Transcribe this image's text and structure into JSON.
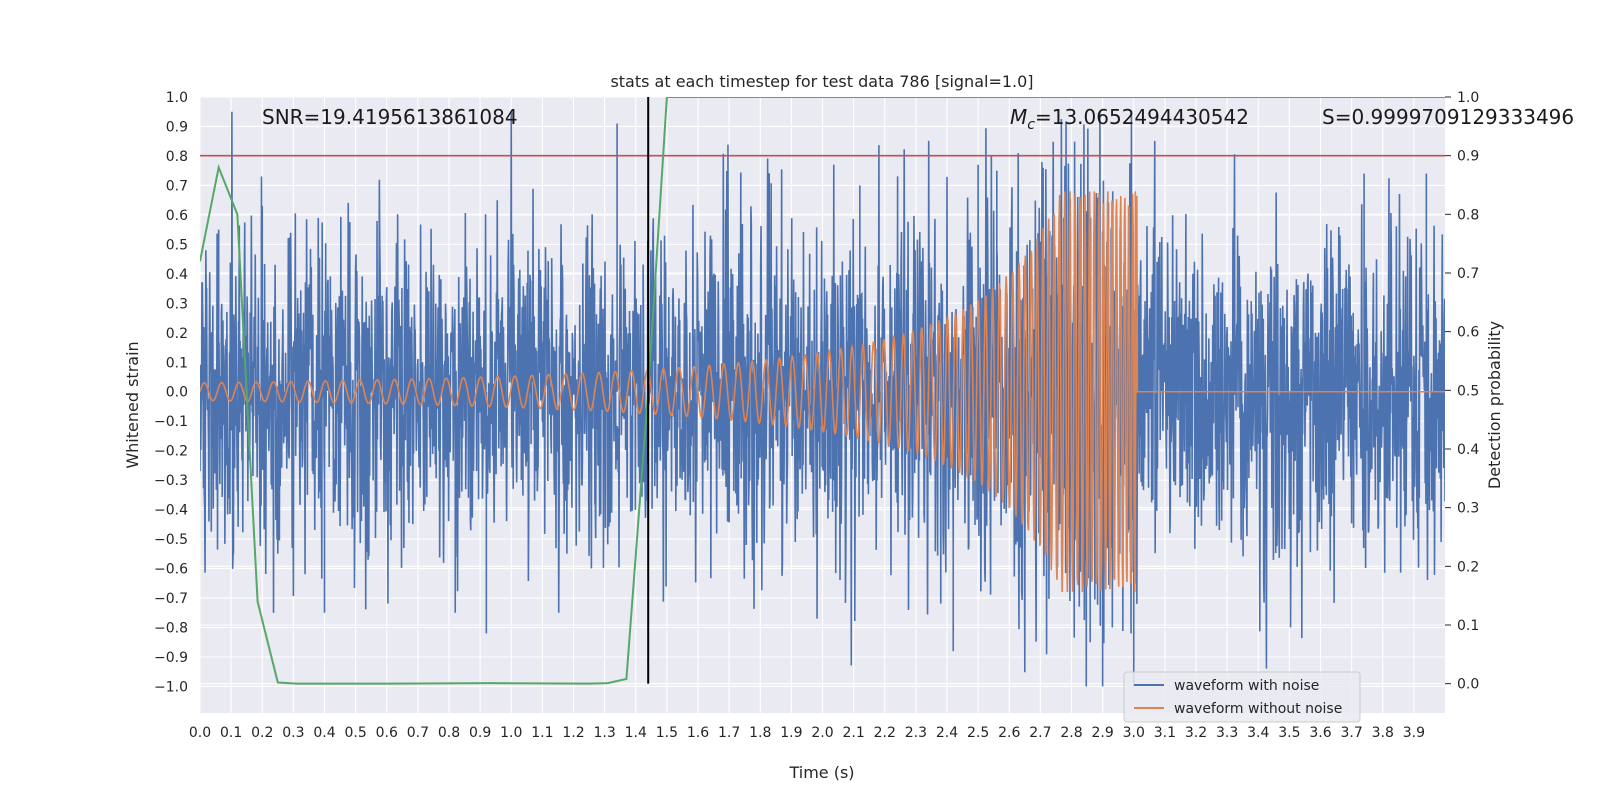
{
  "chart_data": {
    "type": "line",
    "title": "stats at each timestep for test data 786 [signal=1.0]",
    "xlabel": "Time (s)",
    "ylabel": "Whitened strain",
    "ylabel_right": "Detection probability",
    "xlim": [
      0.0,
      4.0
    ],
    "ylim": [
      -1.09,
      1.0
    ],
    "ylim_right": [
      -0.05,
      1.0
    ],
    "x_ticks": [
      "0.0",
      "0.1",
      "0.2",
      "0.3",
      "0.4",
      "0.5",
      "0.6",
      "0.7",
      "0.8",
      "0.9",
      "1.0",
      "1.1",
      "1.2",
      "1.3",
      "1.4",
      "1.5",
      "1.6",
      "1.7",
      "1.8",
      "1.9",
      "2.0",
      "2.1",
      "2.2",
      "2.3",
      "2.4",
      "2.5",
      "2.6",
      "2.7",
      "2.8",
      "2.9",
      "3.0",
      "3.1",
      "3.2",
      "3.3",
      "3.4",
      "3.5",
      "3.6",
      "3.7",
      "3.8",
      "3.9"
    ],
    "y_ticks": [
      "1.0",
      "0.9",
      "0.8",
      "0.7",
      "0.6",
      "0.5",
      "0.4",
      "0.3",
      "0.2",
      "0.1",
      "0.0",
      "−0.1",
      "−0.2",
      "−0.3",
      "−0.4",
      "−0.5",
      "−0.6",
      "−0.7",
      "−0.8",
      "−0.9",
      "−1.0"
    ],
    "y_ticks_right": [
      "1.0",
      "0.9",
      "0.8",
      "0.7",
      "0.6",
      "0.5",
      "0.4",
      "0.3",
      "0.2",
      "0.1",
      "0.0"
    ],
    "annotations": {
      "snr": "SNR=19.4195613861084",
      "mc_symbol": "M",
      "mc_sub": "c",
      "mc_value": "=13.0652494430542",
      "s": "S=0.9999709129333496"
    },
    "threshold": {
      "value": 0.9,
      "axis": "right",
      "color": "#c44e52"
    },
    "marker": {
      "x": 1.44,
      "color": "#000000"
    },
    "series": [
      {
        "name": "waveform with noise",
        "color": "#4c72b0",
        "axis": "left",
        "kind": "noise",
        "amplitude": 0.27,
        "peaks": [
          {
            "x": 1.34,
            "y": 0.91
          },
          {
            "x": 2.5,
            "y": 0.77
          },
          {
            "x": 2.56,
            "y": 0.75
          },
          {
            "x": 2.12,
            "y": 0.7
          },
          {
            "x": 2.9,
            "y": -1.0
          },
          {
            "x": 3.0,
            "y": -1.0
          },
          {
            "x": 2.42,
            "y": -0.88
          },
          {
            "x": 2.86,
            "y": -0.85
          },
          {
            "x": 3.94,
            "y": 0.74
          },
          {
            "x": 3.74,
            "y": 0.74
          },
          {
            "x": 0.4,
            "y": -0.75
          },
          {
            "x": 0.92,
            "y": -0.82
          },
          {
            "x": 0.82,
            "y": -0.75
          },
          {
            "x": 0.06,
            "y": 0.55
          },
          {
            "x": 0.2,
            "y": 0.63
          }
        ]
      },
      {
        "name": "waveform without noise",
        "color": "#dd8452",
        "axis": "left",
        "kind": "chirp",
        "merger_time": 3.01,
        "start_amplitude": 0.03,
        "peak_amplitude": 0.68,
        "start_frequency": 18,
        "end_frequency": 80
      },
      {
        "name": "detection probability",
        "color": "#55a868",
        "axis": "right",
        "kind": "line",
        "x": [
          0.0,
          0.06,
          0.12,
          0.185,
          0.25,
          0.31,
          0.62,
          0.93,
          1.25,
          1.31,
          1.37,
          1.44,
          1.5,
          1.6,
          4.0
        ],
        "y": [
          0.72,
          0.88,
          0.8,
          0.14,
          0.002,
          0.0,
          0.0,
          0.001,
          0.0,
          0.001,
          0.008,
          0.5,
          1.0,
          1.0,
          1.0
        ]
      }
    ],
    "legend": {
      "position": "lower-right",
      "entries": [
        "waveform with noise",
        "waveform without noise"
      ]
    }
  }
}
